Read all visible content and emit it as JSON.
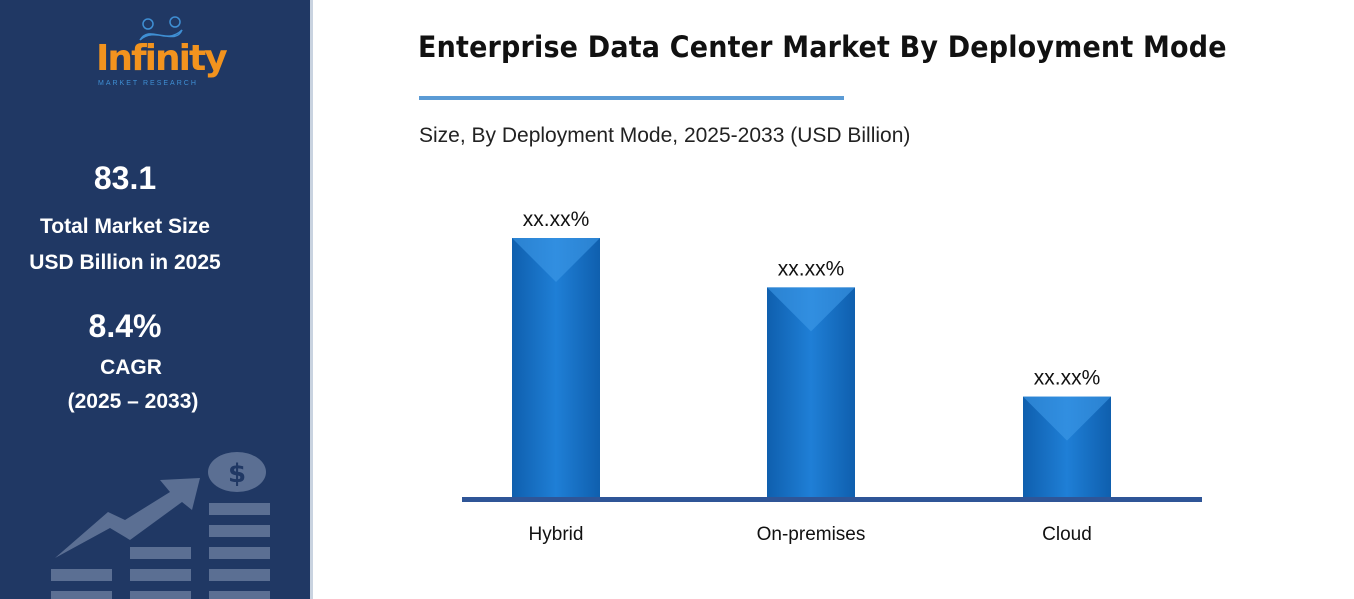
{
  "sidebar": {
    "logo": {
      "name": "Infinity",
      "tagline": "MARKET RESEARCH"
    },
    "market_size_value": "83.1",
    "market_size_label_1": "Total Market Size",
    "market_size_label_2": "USD Billion in 2025",
    "cagr_value": "8.4%",
    "cagr_label": "CAGR",
    "cagr_period": "(2025 – 2033)",
    "decor_icon": "growth-chart-dollar-icon"
  },
  "colors": {
    "sidebar": "#203864",
    "bar": "#1a75c9",
    "axis": "#2f5597",
    "accent_rule": "#5b9bd5",
    "logo": "#f2931e"
  },
  "chart_data": {
    "type": "bar",
    "title": "Enterprise Data Center Market By Deployment Mode",
    "subtitle": "Size, By Deployment Mode, 2025-2033 (USD Billion)",
    "categories": [
      "Hybrid",
      "On-premises",
      "Cloud"
    ],
    "values": [
      100,
      81,
      39
    ],
    "data_labels": [
      "xx.xx%",
      "xx.xx%",
      "xx.xx%"
    ],
    "ylim": [
      0,
      100
    ],
    "xlabel": "",
    "ylabel": "",
    "grid": false,
    "legend": "none"
  }
}
